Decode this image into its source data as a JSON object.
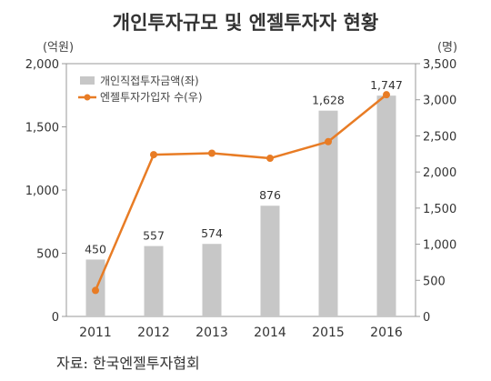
{
  "chart_data": {
    "type": "bar+line",
    "title": "개인투자규모 및 엔젤투자자 현황",
    "categories": [
      "2011",
      "2012",
      "2013",
      "2014",
      "2015",
      "2016"
    ],
    "series": [
      {
        "name": "개인직접투자금액(좌)",
        "type": "bar",
        "axis": "left",
        "values": [
          450,
          557,
          574,
          876,
          1628,
          1747
        ],
        "labels": [
          "450",
          "557",
          "574",
          "876",
          "1,628",
          "1,747"
        ],
        "color": "#c7c7c7"
      },
      {
        "name": "엔젤투자가입자 수(우)",
        "type": "line",
        "axis": "right",
        "values": [
          360,
          2240,
          2260,
          2190,
          2420,
          3070
        ],
        "color": "#e87c25"
      }
    ],
    "y_left": {
      "unit": "(억원)",
      "ylim": [
        0,
        2000
      ],
      "ticks": [
        0,
        500,
        1000,
        1500,
        2000
      ],
      "tick_labels": [
        "0",
        "500",
        "1,000",
        "1,500",
        "2,000"
      ]
    },
    "y_right": {
      "unit": "(명)",
      "ylim": [
        0,
        3500
      ],
      "ticks": [
        0,
        500,
        1000,
        1500,
        2000,
        2500,
        3000,
        3500
      ],
      "tick_labels": [
        "0",
        "500",
        "1,000",
        "1,500",
        "2,000",
        "2,500",
        "3,000",
        "3,500"
      ]
    },
    "legend_position": "top-left",
    "grid": false
  },
  "source": "자료: 한국엔젤투자협회"
}
